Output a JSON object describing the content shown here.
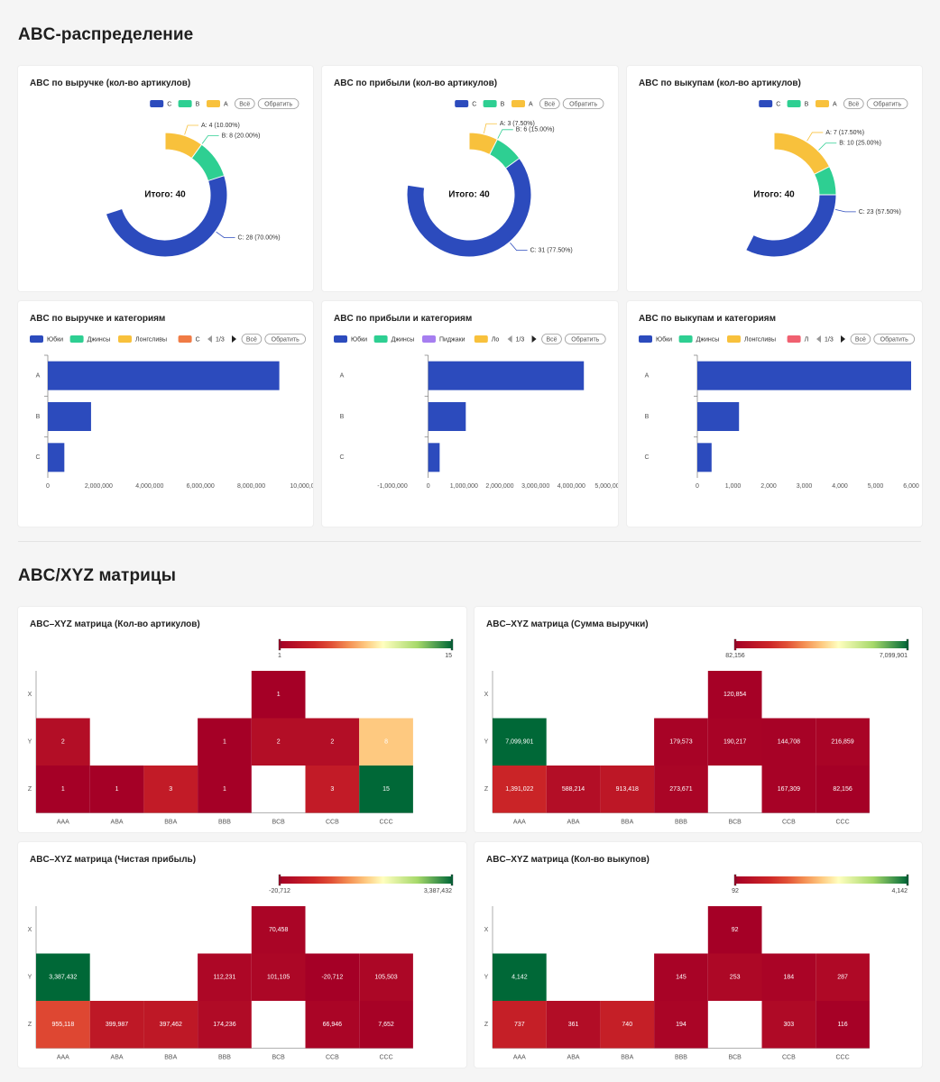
{
  "sections": {
    "abc_title": "ABC-распределение",
    "matrix_title": "ABC/XYZ матрицы"
  },
  "colors": {
    "C": "#2c4bbd",
    "B": "#2ecf92",
    "A": "#f8c13c",
    "cat_skirts": "#2c4bbd",
    "cat_jeans": "#2ecf92",
    "cat_longsleeves": "#f8c13c",
    "cat_blazers": "#a67ef0",
    "cat_other_orange": "#f07b45",
    "cat_other_red": "#f06070",
    "heat_low": "#a50026",
    "heat_mid": "#ffffbf",
    "heat_high": "#006837"
  },
  "buttons": {
    "all": "Всё",
    "invert": "Обратить"
  },
  "chart_data": [
    {
      "id": "donut-revenue",
      "type": "pie",
      "title": "ABC по выручке (кол-во артикулов)",
      "legend": [
        "C",
        "B",
        "A"
      ],
      "slices": [
        {
          "name": "C",
          "value": 28,
          "label": "C: 28 (70.00%)"
        },
        {
          "name": "B",
          "value": 8,
          "label": "B: 8 (20.00%)"
        },
        {
          "name": "A",
          "value": 4,
          "label": "A: 4 (10.00%)"
        }
      ],
      "center_label": "Итого: 40"
    },
    {
      "id": "donut-profit",
      "type": "pie",
      "title": "ABC по прибыли (кол-во артикулов)",
      "legend": [
        "C",
        "B",
        "A"
      ],
      "slices": [
        {
          "name": "C",
          "value": 31,
          "label": "C: 31 (77.50%)"
        },
        {
          "name": "B",
          "value": 6,
          "label": "B: 6 (15.00%)"
        },
        {
          "name": "A",
          "value": 3,
          "label": "A: 3 (7.50%)"
        }
      ],
      "center_label": "Итого: 40"
    },
    {
      "id": "donut-buyouts",
      "type": "pie",
      "title": "ABC по выкупам (кол-во артикулов)",
      "legend": [
        "C",
        "B",
        "A"
      ],
      "slices": [
        {
          "name": "C",
          "value": 23,
          "label": "C: 23 (57.50%)"
        },
        {
          "name": "B",
          "value": 10,
          "label": "B: 10 (25.00%)"
        },
        {
          "name": "A",
          "value": 7,
          "label": "A: 7 (17.50%)"
        }
      ],
      "center_label": "Итого: 40"
    },
    {
      "id": "bar-revenue",
      "type": "bar",
      "orientation": "horizontal",
      "title": "ABC по выручке и категориям",
      "legend": [
        {
          "name": "Юбки",
          "color_key": "cat_skirts"
        },
        {
          "name": "Джинсы",
          "color_key": "cat_jeans"
        },
        {
          "name": "Лонгсливы",
          "color_key": "cat_longsleeves"
        },
        {
          "name": "С",
          "color_key": "cat_other_orange"
        }
      ],
      "pager": "1/3",
      "categories": [
        "A",
        "B",
        "C"
      ],
      "series": [
        {
          "name": "Юбки",
          "values": [
            9100000,
            1700000,
            650000
          ]
        }
      ],
      "xlim": [
        0,
        10000000
      ],
      "xticks": [
        "0",
        "2,000,000",
        "4,000,000",
        "6,000,000",
        "8,000,000",
        "10,000,0"
      ]
    },
    {
      "id": "bar-profit",
      "type": "bar",
      "orientation": "horizontal",
      "title": "ABC по прибыли и категориям",
      "legend": [
        {
          "name": "Юбки",
          "color_key": "cat_skirts"
        },
        {
          "name": "Джинсы",
          "color_key": "cat_jeans"
        },
        {
          "name": "Пиджаки",
          "color_key": "cat_blazers"
        },
        {
          "name": "Ло",
          "color_key": "cat_longsleeves"
        }
      ],
      "pager": "1/3",
      "categories": [
        "A",
        "B",
        "C"
      ],
      "series": [
        {
          "name": "Юбки",
          "values": [
            4350000,
            1050000,
            320000
          ]
        }
      ],
      "xlim": [
        -1000000,
        5000000
      ],
      "xticks": [
        "-1,000,000",
        "0",
        "1,000,000",
        "2,000,000",
        "3,000,000",
        "4,000,000",
        "5,000,00"
      ]
    },
    {
      "id": "bar-buyouts",
      "type": "bar",
      "orientation": "horizontal",
      "title": "ABC по выкупам и категориям",
      "legend": [
        {
          "name": "Юбки",
          "color_key": "cat_skirts"
        },
        {
          "name": "Джинсы",
          "color_key": "cat_jeans"
        },
        {
          "name": "Лонгсливы",
          "color_key": "cat_longsleeves"
        },
        {
          "name": "Л",
          "color_key": "cat_other_red"
        }
      ],
      "pager": "1/3",
      "categories": [
        "A",
        "B",
        "C"
      ],
      "series": [
        {
          "name": "Юбки",
          "values": [
            6000,
            1170,
            400
          ]
        }
      ],
      "xlim": [
        0,
        6000
      ],
      "xticks": [
        "0",
        "1,000",
        "2,000",
        "3,000",
        "4,000",
        "5,000",
        "6,000"
      ]
    },
    {
      "id": "heat-count",
      "type": "heatmap",
      "title": "ABC–XYZ матрица (Кол-во артикулов)",
      "columns": [
        "AAA",
        "ABA",
        "BBA",
        "BBB",
        "BCB",
        "CCB",
        "CCC"
      ],
      "rows": [
        "X",
        "Y",
        "Z"
      ],
      "range": [
        1,
        15
      ],
      "range_labels": [
        "1",
        "15"
      ],
      "cells": [
        {
          "col": "BCB",
          "row": "X",
          "value": 1,
          "label": "1"
        },
        {
          "col": "AAA",
          "row": "Y",
          "value": 2,
          "label": "2"
        },
        {
          "col": "BBB",
          "row": "Y",
          "value": 1,
          "label": "1"
        },
        {
          "col": "BCB",
          "row": "Y",
          "value": 2,
          "label": "2"
        },
        {
          "col": "CCB",
          "row": "Y",
          "value": 2,
          "label": "2"
        },
        {
          "col": "CCC",
          "row": "Y",
          "value": 8,
          "label": "8"
        },
        {
          "col": "AAA",
          "row": "Z",
          "value": 1,
          "label": "1"
        },
        {
          "col": "ABA",
          "row": "Z",
          "value": 1,
          "label": "1"
        },
        {
          "col": "BBA",
          "row": "Z",
          "value": 3,
          "label": "3"
        },
        {
          "col": "BBB",
          "row": "Z",
          "value": 1,
          "label": "1"
        },
        {
          "col": "CCB",
          "row": "Z",
          "value": 3,
          "label": "3"
        },
        {
          "col": "CCC",
          "row": "Z",
          "value": 15,
          "label": "15"
        }
      ]
    },
    {
      "id": "heat-revenue",
      "type": "heatmap",
      "title": "ABC–XYZ матрица (Сумма выручки)",
      "columns": [
        "AAA",
        "ABA",
        "BBA",
        "BBB",
        "BCB",
        "CCB",
        "CCC"
      ],
      "rows": [
        "X",
        "Y",
        "Z"
      ],
      "range": [
        82156,
        7099901
      ],
      "range_labels": [
        "82,156",
        "7,099,901"
      ],
      "cells": [
        {
          "col": "BCB",
          "row": "X",
          "value": 120854,
          "label": "120,854"
        },
        {
          "col": "AAA",
          "row": "Y",
          "value": 7099901,
          "label": "7,099,901"
        },
        {
          "col": "BBB",
          "row": "Y",
          "value": 179573,
          "label": "179,573"
        },
        {
          "col": "BCB",
          "row": "Y",
          "value": 190217,
          "label": "190,217"
        },
        {
          "col": "CCB",
          "row": "Y",
          "value": 144708,
          "label": "144,708"
        },
        {
          "col": "CCC",
          "row": "Y",
          "value": 216859,
          "label": "216,859"
        },
        {
          "col": "AAA",
          "row": "Z",
          "value": 1391022,
          "label": "1,391,022"
        },
        {
          "col": "ABA",
          "row": "Z",
          "value": 588214,
          "label": "588,214"
        },
        {
          "col": "BBA",
          "row": "Z",
          "value": 913418,
          "label": "913,418"
        },
        {
          "col": "BBB",
          "row": "Z",
          "value": 273671,
          "label": "273,671"
        },
        {
          "col": "CCB",
          "row": "Z",
          "value": 167309,
          "label": "167,309"
        },
        {
          "col": "CCC",
          "row": "Z",
          "value": 82156,
          "label": "82,156"
        }
      ]
    },
    {
      "id": "heat-netprofit",
      "type": "heatmap",
      "title": "ABC–XYZ матрица (Чистая прибыль)",
      "columns": [
        "AAA",
        "ABA",
        "BBA",
        "BBB",
        "BCB",
        "CCB",
        "CCC"
      ],
      "rows": [
        "X",
        "Y",
        "Z"
      ],
      "range": [
        -20712,
        3387432
      ],
      "range_labels": [
        "-20,712",
        "3,387,432"
      ],
      "cells": [
        {
          "col": "BCB",
          "row": "X",
          "value": 70458,
          "label": "70,458"
        },
        {
          "col": "AAA",
          "row": "Y",
          "value": 3387432,
          "label": "3,387,432"
        },
        {
          "col": "BBB",
          "row": "Y",
          "value": 112231,
          "label": "112,231"
        },
        {
          "col": "BCB",
          "row": "Y",
          "value": 101105,
          "label": "101,105"
        },
        {
          "col": "CCB",
          "row": "Y",
          "value": -20712,
          "label": "-20,712"
        },
        {
          "col": "CCC",
          "row": "Y",
          "value": 105503,
          "label": "105,503"
        },
        {
          "col": "AAA",
          "row": "Z",
          "value": 955118,
          "label": "955,118"
        },
        {
          "col": "ABA",
          "row": "Z",
          "value": 399987,
          "label": "399,987"
        },
        {
          "col": "BBA",
          "row": "Z",
          "value": 397462,
          "label": "397,462"
        },
        {
          "col": "BBB",
          "row": "Z",
          "value": 174236,
          "label": "174,236"
        },
        {
          "col": "CCB",
          "row": "Z",
          "value": 66946,
          "label": "66,946"
        },
        {
          "col": "CCC",
          "row": "Z",
          "value": 7652,
          "label": "7,652"
        }
      ]
    },
    {
      "id": "heat-buyouts",
      "type": "heatmap",
      "title": "ABC–XYZ матрица (Кол-во выкупов)",
      "columns": [
        "AAA",
        "ABA",
        "BBA",
        "BBB",
        "BCB",
        "CCB",
        "CCC"
      ],
      "rows": [
        "X",
        "Y",
        "Z"
      ],
      "range": [
        92,
        4142
      ],
      "range_labels": [
        "92",
        "4,142"
      ],
      "cells": [
        {
          "col": "BCB",
          "row": "X",
          "value": 92,
          "label": "92"
        },
        {
          "col": "AAA",
          "row": "Y",
          "value": 4142,
          "label": "4,142"
        },
        {
          "col": "BBB",
          "row": "Y",
          "value": 145,
          "label": "145"
        },
        {
          "col": "BCB",
          "row": "Y",
          "value": 253,
          "label": "253"
        },
        {
          "col": "CCB",
          "row": "Y",
          "value": 184,
          "label": "184"
        },
        {
          "col": "CCC",
          "row": "Y",
          "value": 287,
          "label": "287"
        },
        {
          "col": "AAA",
          "row": "Z",
          "value": 737,
          "label": "737"
        },
        {
          "col": "ABA",
          "row": "Z",
          "value": 361,
          "label": "361"
        },
        {
          "col": "BBA",
          "row": "Z",
          "value": 740,
          "label": "740"
        },
        {
          "col": "BBB",
          "row": "Z",
          "value": 194,
          "label": "194"
        },
        {
          "col": "CCB",
          "row": "Z",
          "value": 303,
          "label": "303"
        },
        {
          "col": "CCC",
          "row": "Z",
          "value": 116,
          "label": "116"
        }
      ]
    }
  ]
}
